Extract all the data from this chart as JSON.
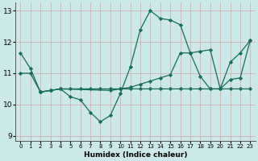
{
  "xlabel": "Humidex (Indice chaleur)",
  "background_color": "#cce8e8",
  "grid_color": "#d0b8b8",
  "line_color": "#1a6b5a",
  "xlim": [
    -0.5,
    23.5
  ],
  "ylim": [
    8.85,
    13.25
  ],
  "yticks": [
    9,
    10,
    11,
    12,
    13
  ],
  "xticks": [
    0,
    1,
    2,
    3,
    4,
    5,
    6,
    7,
    8,
    9,
    10,
    11,
    12,
    13,
    14,
    15,
    16,
    17,
    18,
    19,
    20,
    21,
    22,
    23
  ],
  "line1_x": [
    0,
    1,
    2,
    3,
    4,
    5,
    6,
    7,
    8,
    9,
    10,
    11,
    12,
    13,
    14,
    15,
    16,
    17,
    18,
    19,
    20,
    21,
    22,
    23
  ],
  "line1_y": [
    11.65,
    11.15,
    10.4,
    10.45,
    10.5,
    10.25,
    10.15,
    9.75,
    9.45,
    9.65,
    10.35,
    11.2,
    12.4,
    13.0,
    12.75,
    12.7,
    12.55,
    11.65,
    10.9,
    10.5,
    10.5,
    11.35,
    11.65,
    12.05
  ],
  "line2_x": [
    2,
    3,
    4,
    5,
    6,
    7,
    8,
    9,
    10,
    11,
    12,
    13,
    14,
    15,
    16,
    17,
    18,
    19,
    20,
    21,
    22,
    23
  ],
  "line2_y": [
    10.4,
    10.45,
    10.5,
    10.5,
    10.5,
    10.5,
    10.5,
    10.5,
    10.5,
    10.5,
    10.5,
    10.5,
    10.5,
    10.5,
    10.5,
    10.5,
    10.5,
    10.5,
    10.5,
    10.5,
    10.5,
    10.5
  ],
  "line3_x": [
    0,
    1,
    2,
    3,
    4,
    9,
    10,
    11,
    12,
    13,
    14,
    15,
    16,
    17,
    18,
    19,
    20,
    21,
    22,
    23
  ],
  "line3_y": [
    11.0,
    11.0,
    10.4,
    10.45,
    10.5,
    10.45,
    10.5,
    10.55,
    10.65,
    10.75,
    10.85,
    10.95,
    11.65,
    11.65,
    11.7,
    11.75,
    10.5,
    10.8,
    10.85,
    12.05
  ]
}
